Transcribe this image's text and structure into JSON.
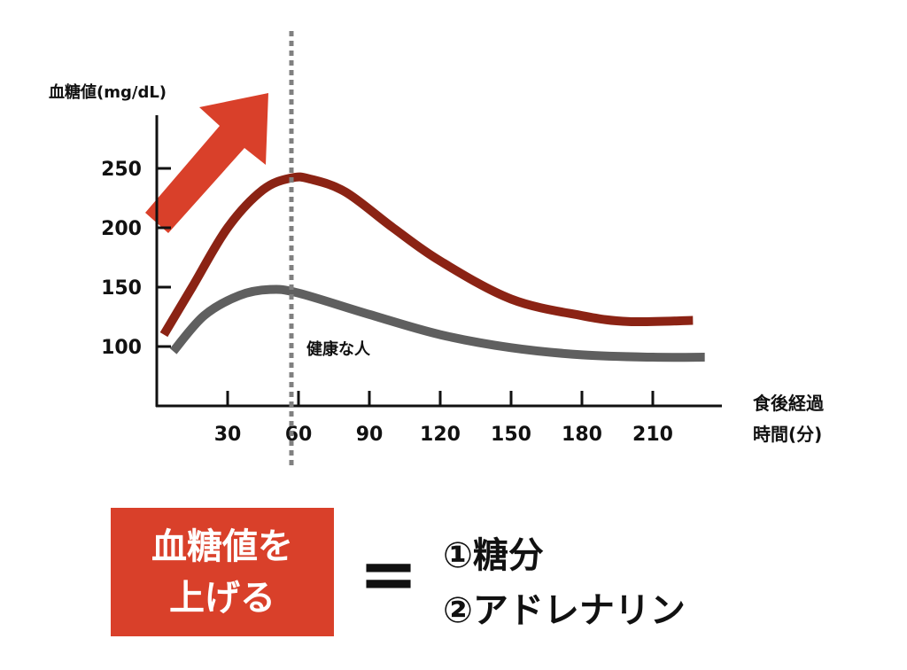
{
  "chart_data": {
    "type": "line",
    "ylabel": "血糖値(mg/dL)",
    "xlabel": [
      "食後経過",
      "時間(分)"
    ],
    "yticks": [
      100,
      150,
      200,
      250
    ],
    "xticks": [
      30,
      60,
      90,
      120,
      150,
      180,
      210
    ],
    "grid": false,
    "series": [
      {
        "color": "#8b2314",
        "points": [
          [
            3,
            110
          ],
          [
            15,
            150
          ],
          [
            30,
            200
          ],
          [
            45,
            232
          ],
          [
            57,
            242
          ],
          [
            65,
            241
          ],
          [
            80,
            230
          ],
          [
            100,
            200
          ],
          [
            120,
            172
          ],
          [
            150,
            140
          ],
          [
            180,
            126
          ],
          [
            200,
            121
          ],
          [
            227,
            122
          ]
        ]
      },
      {
        "name": "健康な人",
        "color": "#5f5f5f",
        "points": [
          [
            7,
            96
          ],
          [
            20,
            126
          ],
          [
            35,
            143
          ],
          [
            48,
            148
          ],
          [
            60,
            145
          ],
          [
            90,
            127
          ],
          [
            120,
            110
          ],
          [
            150,
            99
          ],
          [
            180,
            93
          ],
          [
            210,
            91
          ],
          [
            232,
            91
          ]
        ]
      }
    ],
    "vline": {
      "x": 57,
      "style": "dotted",
      "color": "#808080"
    },
    "arrow": {
      "direction": "up-right",
      "color": "#d9402a"
    }
  },
  "callout": {
    "box_lines": [
      "血糖値を",
      "上げる"
    ],
    "box_color": "#d9402a",
    "equals": "=",
    "items": [
      "①糖分",
      "②アドレナリン"
    ]
  }
}
